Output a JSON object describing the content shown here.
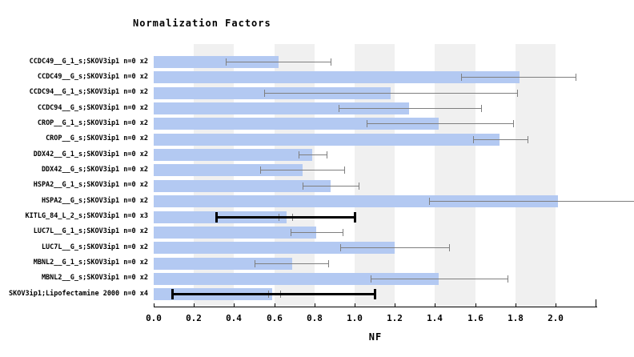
{
  "title": "Normalization Factors",
  "xlabel": "NF",
  "colors": {
    "bar": "#b3c9f2",
    "error_gray": "#7f7f7f",
    "error_black": "#000000",
    "stripe": "#f0f0f0",
    "background": "#ffffff",
    "text": "#000000"
  },
  "chart_data": {
    "type": "bar",
    "orientation": "horizontal",
    "title": "Normalization Factors",
    "xlabel": "NF",
    "xlim": [
      0.0,
      2.2
    ],
    "grid": "alternating vertical gray bands",
    "stripe_bands": [
      [
        0.2,
        0.4
      ],
      [
        0.6,
        0.8
      ],
      [
        1.0,
        1.2
      ],
      [
        1.4,
        1.6
      ],
      [
        1.8,
        2.0
      ]
    ],
    "tick_values": [
      0.0,
      0.2,
      0.4,
      0.6,
      0.8,
      1.0,
      1.2,
      1.4,
      1.6,
      1.8,
      2.0
    ],
    "tick_labels": [
      "0.0",
      "0.2",
      "0.4",
      "0.6",
      "0.8",
      "1.0",
      "1.2",
      "1.4",
      "1.6",
      "1.8",
      "2.0"
    ],
    "axis_end_tick": 2.2,
    "bars": [
      {
        "label": "CCDC49__G_1_s;SKOV3ip1 n=0 x2",
        "value": 0.62,
        "err_lo": 0.36,
        "err_hi": 0.88
      },
      {
        "label": "CCDC49__G_s;SKOV3ip1 n=0 x2",
        "value": 1.82,
        "err_lo": 1.53,
        "err_hi": 2.1
      },
      {
        "label": "CCDC94__G_1_s;SKOV3ip1 n=0 x2",
        "value": 1.18,
        "err_lo": 0.55,
        "err_hi": 1.81
      },
      {
        "label": "CCDC94__G_s;SKOV3ip1 n=0 x2",
        "value": 1.27,
        "err_lo": 0.92,
        "err_hi": 1.63
      },
      {
        "label": "CROP__G_1_s;SKOV3ip1 n=0 x2",
        "value": 1.42,
        "err_lo": 1.06,
        "err_hi": 1.79
      },
      {
        "label": "CROP__G_s;SKOV3ip1 n=0 x2",
        "value": 1.72,
        "err_lo": 1.59,
        "err_hi": 1.86
      },
      {
        "label": "DDX42__G_1_s;SKOV3ip1 n=0 x2",
        "value": 0.79,
        "err_lo": 0.72,
        "err_hi": 0.86
      },
      {
        "label": "DDX42__G_s;SKOV3ip1 n=0 x2",
        "value": 0.74,
        "err_lo": 0.53,
        "err_hi": 0.95
      },
      {
        "label": "HSPA2__G_1_s;SKOV3ip1 n=0 x2",
        "value": 0.88,
        "err_lo": 0.74,
        "err_hi": 1.02
      },
      {
        "label": "HSPA2__G_s;SKOV3ip1 n=0 x2",
        "value": 2.01,
        "err_lo": 1.37,
        "err_hi": 2.39,
        "err_clipped": true
      },
      {
        "label": "KITLG_84_L_2_s;SKOV3ip1 n=0 x3",
        "value": 0.66,
        "err_lo": 0.62,
        "err_hi": 0.69,
        "black_err_lo": 0.31,
        "black_err_hi": 1.0
      },
      {
        "label": "LUC7L__G_1_s;SKOV3ip1 n=0 x2",
        "value": 0.81,
        "err_lo": 0.68,
        "err_hi": 0.94
      },
      {
        "label": "LUC7L__G_s;SKOV3ip1 n=0 x2",
        "value": 1.2,
        "err_lo": 0.93,
        "err_hi": 1.47
      },
      {
        "label": "MBNL2__G_1_s;SKOV3ip1 n=0 x2",
        "value": 0.69,
        "err_lo": 0.5,
        "err_hi": 0.87
      },
      {
        "label": "MBNL2__G_s;SKOV3ip1 n=0 x2",
        "value": 1.42,
        "err_lo": 1.08,
        "err_hi": 1.76
      },
      {
        "label": "SKOV3ip1;Lipofectamine 2000 n=0 x4",
        "value": 0.59,
        "err_lo": 0.57,
        "err_hi": 0.63,
        "black_err_lo": 0.09,
        "black_err_hi": 1.1
      }
    ]
  }
}
